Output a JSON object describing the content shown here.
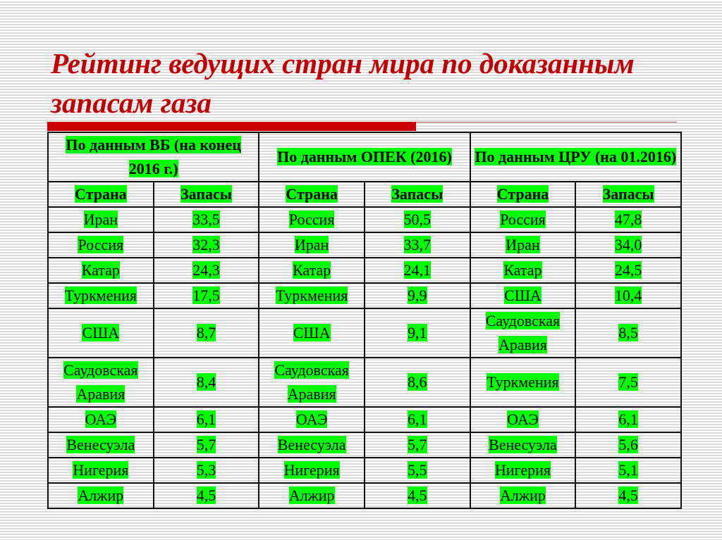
{
  "title": "Рейтинг ведущих стран мира по доказанным запасам газа",
  "colors": {
    "title": "#c00000",
    "highlight": "#00ff00",
    "bar": "#cc0000"
  },
  "table": {
    "groups": [
      "По данным ВБ (на конец 2016 г.)",
      "По данным ОПЕК (2016)",
      "По данным ЦРУ (на 01.2016)"
    ],
    "subheaders": [
      "Страна",
      "Запасы",
      "Страна",
      "Запасы",
      "Страна",
      "Запасы"
    ],
    "rows": [
      [
        "Иран",
        "33,5",
        "Россия",
        "50,5",
        "Россия",
        "47,8"
      ],
      [
        "Россия",
        "32,3",
        "Иран",
        "33,7",
        "Иран",
        "34,0"
      ],
      [
        "Катар",
        "24,3",
        "Катар",
        "24,1",
        "Катар",
        "24,5"
      ],
      [
        "Туркмения",
        "17,5",
        "Туркмения",
        "9,9",
        "США",
        "10,4"
      ],
      [
        "США",
        "8,7",
        "США",
        "9,1",
        "Саудовская Аравия",
        "8,5"
      ],
      [
        "Саудовская Аравия",
        "8,4",
        "Саудовская Аравия",
        "8,6",
        "Туркмения",
        "7,5"
      ],
      [
        "ОАЭ",
        "6,1",
        "ОАЭ",
        "6,1",
        "ОАЭ",
        "6,1"
      ],
      [
        "Венесуэла",
        "5,7",
        "Венесуэла",
        "5,7",
        "Венесуэла",
        "5,6"
      ],
      [
        "Нигерия",
        "5,3",
        "Нигерия",
        "5,5",
        "Нигерия",
        "5,1"
      ],
      [
        "Алжир",
        "4,5",
        "Алжир",
        "4,5",
        "Алжир",
        "4,5"
      ]
    ]
  }
}
